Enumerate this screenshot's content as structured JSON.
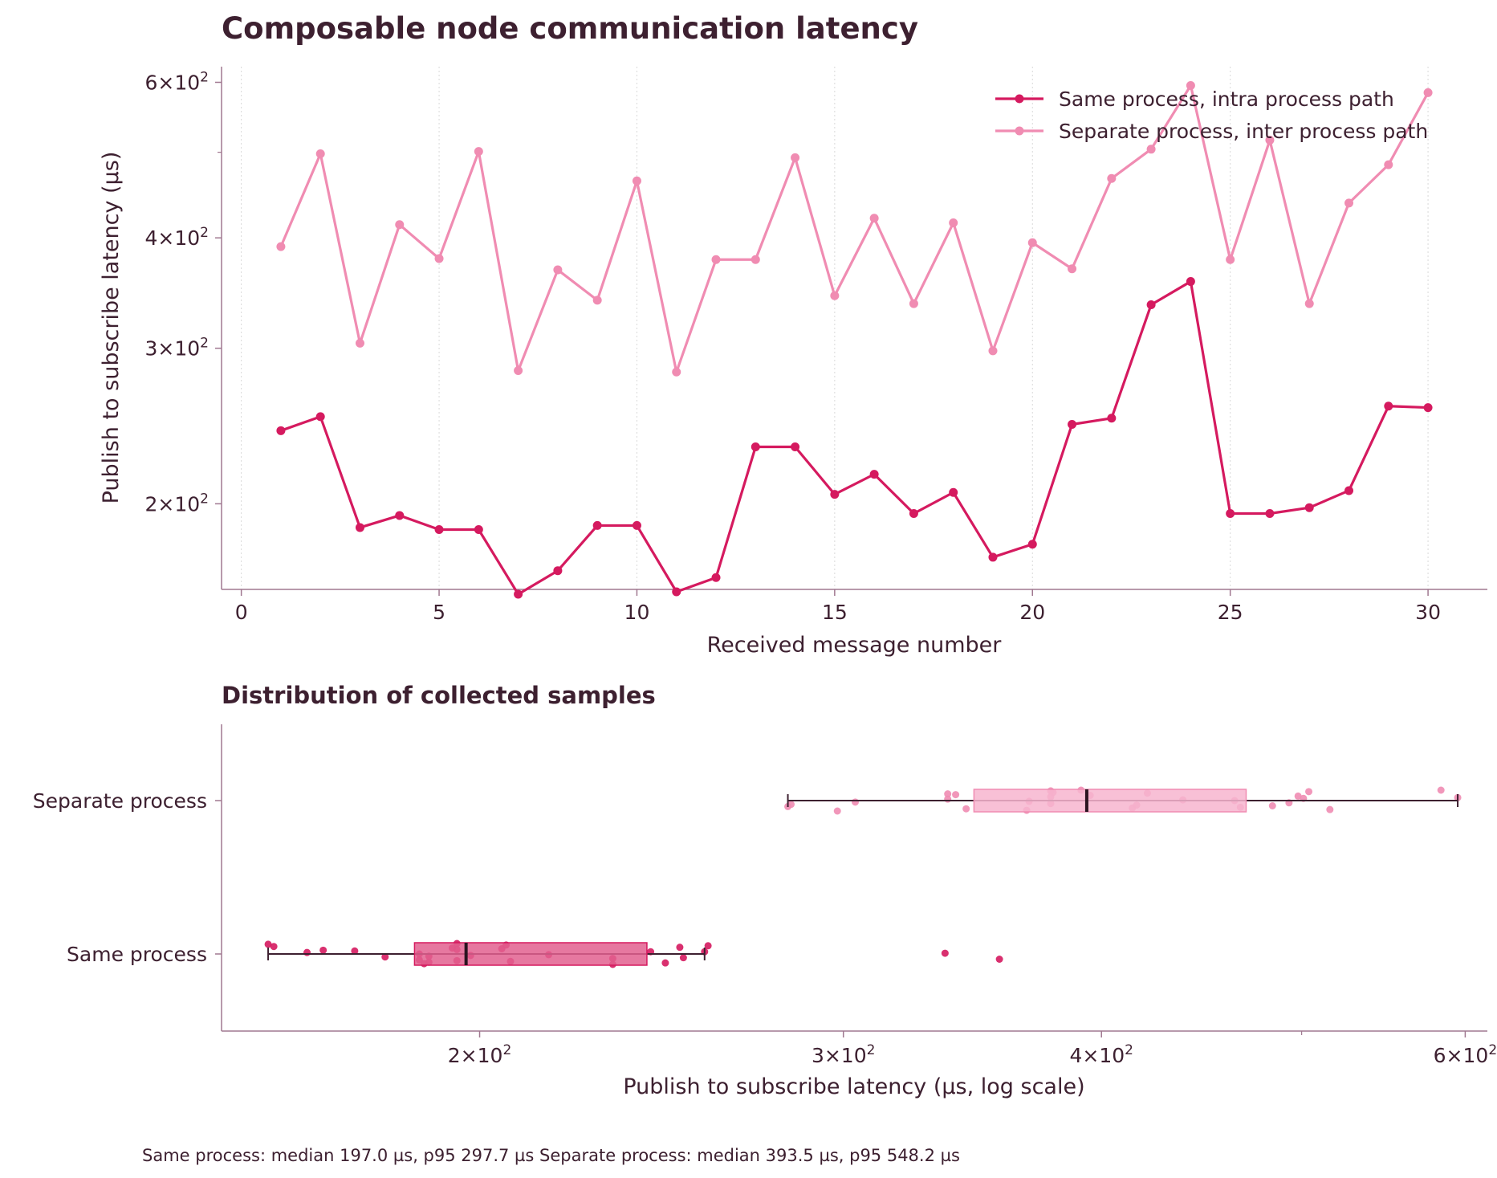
{
  "figure": {
    "footer": "Same process: median 197.0 µs, p95 297.7 µs   Separate process: median 393.5 µs, p95 548.2 µs"
  },
  "colors": {
    "same": "#d51a5f",
    "separate": "#f08cb2",
    "same_box": "#e2608f",
    "separate_box": "#f7b5cf",
    "axis": "#a07890",
    "text": "#3d2030"
  },
  "chart_data": [
    {
      "type": "line",
      "title": "Composable node communication latency",
      "xlabel": "Received message number",
      "ylabel": "Publish to subscribe latency (µs)",
      "yscale": "log",
      "xlim": [
        -0.5,
        31.5
      ],
      "ylim": [
        160,
        625
      ],
      "xticks": [
        0,
        5,
        10,
        15,
        20,
        25,
        30
      ],
      "xtick_labels": [
        "0",
        "5",
        "10",
        "15",
        "20",
        "25",
        "30"
      ],
      "yticks": [
        200,
        300,
        400,
        600
      ],
      "ytick_labels": [
        [
          "2",
          "2"
        ],
        [
          "3",
          "2"
        ],
        [
          "4",
          "2"
        ],
        [
          "6",
          "2"
        ]
      ],
      "x_grid": true,
      "legend_position": "top-right",
      "x": [
        1,
        2,
        3,
        4,
        5,
        6,
        7,
        8,
        9,
        10,
        11,
        12,
        13,
        14,
        15,
        16,
        17,
        18,
        19,
        20,
        21,
        22,
        23,
        24,
        25,
        26,
        27,
        28,
        29,
        30
      ],
      "series": [
        {
          "name": "Same process, intra process path",
          "values": [
            242,
            251,
            188,
            194,
            187,
            187,
            158,
            168,
            189,
            189,
            159,
            165,
            232,
            232,
            205,
            216,
            195,
            206,
            174,
            180,
            246,
            250,
            336,
            357,
            195,
            195,
            198,
            207,
            258,
            257
          ]
        },
        {
          "name": "Separate process, inter process path",
          "values": [
            391,
            498,
            304,
            414,
            379,
            501,
            283,
            368,
            340,
            464,
            282,
            378,
            378,
            493,
            344,
            421,
            337,
            416,
            298,
            395,
            369,
            467,
            504,
            595,
            378,
            516,
            337,
            438,
            484,
            584
          ]
        }
      ]
    },
    {
      "type": "box",
      "title": "Distribution of collected samples",
      "xlabel": "Publish to subscribe latency (µs, log scale)",
      "xscale": "log",
      "xlim": [
        150,
        615
      ],
      "xticks": [
        200,
        300,
        400,
        600
      ],
      "xtick_labels": [
        [
          "2",
          "2"
        ],
        [
          "3",
          "2"
        ],
        [
          "4",
          "2"
        ],
        [
          "6",
          "2"
        ]
      ],
      "categories": [
        "Separate process",
        "Same process"
      ],
      "boxes": [
        {
          "name": "Separate process",
          "whisker_low": 282,
          "q1": 347,
          "median": 393.5,
          "q3": 470,
          "whisker_high": 595
        },
        {
          "name": "Same process",
          "whisker_low": 158,
          "q1": 186,
          "median": 197.0,
          "q3": 241,
          "whisker_high": 257,
          "outliers": [
            336,
            357
          ]
        }
      ]
    }
  ]
}
